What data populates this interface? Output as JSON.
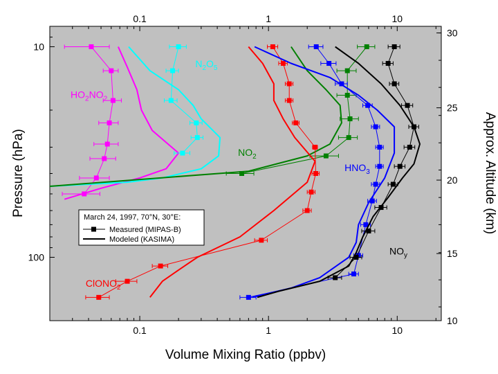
{
  "chart_data": {
    "type": "line",
    "xlabel": "Volume Mixing Ratio (ppbv)",
    "ylabel": "Pressure (hPa)",
    "y2label": "Approx. Altitude (km)",
    "xscale": "log",
    "yscale": "log",
    "xlim": [
      0.02,
      22
    ],
    "ylim": [
      200,
      8
    ],
    "x_ticks": [
      {
        "v": 0.1,
        "label": "0.1"
      },
      {
        "v": 1,
        "label": "1"
      },
      {
        "v": 10,
        "label": "10"
      }
    ],
    "y_ticks": [
      {
        "v": 10,
        "label": "10"
      },
      {
        "v": 100,
        "label": "100"
      }
    ],
    "y2_ticks": [
      {
        "p": 8.6,
        "label": "30"
      },
      {
        "p": 11.6,
        "label": "28"
      },
      {
        "p": 15.6,
        "label": "26"
      },
      {
        "p": 21.2,
        "label": "24"
      },
      {
        "p": 28.6,
        "label": "22"
      },
      {
        "p": 38.5,
        "label": "20"
      },
      {
        "p": 52,
        "label": "18"
      },
      {
        "p": 70,
        "label": "16"
      },
      {
        "p": 95,
        "label": "14"
      },
      {
        "p": 128,
        "label": "12"
      },
      {
        "p": 172,
        "label": "10"
      }
    ],
    "y2_title_ticks": [
      {
        "p": 8.6,
        "label": "30"
      },
      {
        "p": 19.5,
        "label": "25"
      },
      {
        "p": 43,
        "label": "20"
      },
      {
        "p": 96,
        "label": "15"
      },
      {
        "p": 200,
        "label": "10"
      }
    ],
    "grid": false,
    "legend": {
      "position": "center-left",
      "title": "March 24, 1997, 70°N, 30°E:",
      "entries": [
        "Measured (MIPAS-B)",
        "Modeled (KASIMA)"
      ]
    },
    "series": [
      {
        "name": "HO₂NO₂",
        "color": "#ff00ff",
        "measured": {
          "x": [
            0.042,
            0.06,
            0.062,
            0.058,
            0.056,
            0.053,
            0.046,
            0.037
          ],
          "p": [
            10,
            13,
            18,
            23,
            29,
            34,
            42,
            50
          ],
          "xerr": [
            0.016,
            0.008,
            0.01,
            0.01,
            0.012,
            0.012,
            0.012,
            0.012
          ]
        },
        "modeled": {
          "x": [
            0.068,
            0.08,
            0.095,
            0.103,
            0.125,
            0.2,
            0.16,
            0.1,
            0.05,
            0.026
          ],
          "p": [
            10,
            12.5,
            16,
            20,
            25,
            32,
            38,
            42,
            47,
            53
          ]
        }
      },
      {
        "name": "N₂O₅",
        "color": "#00ffff",
        "measured": {
          "x": [
            0.2,
            0.18,
            0.175,
            0.275,
            0.28,
            0.215
          ],
          "p": [
            10,
            13,
            18,
            23,
            27,
            32
          ],
          "xerr": [
            0.03,
            0.02,
            0.02,
            0.03,
            0.03,
            0.03
          ]
        },
        "modeled": {
          "x": [
            0.082,
            0.12,
            0.2,
            0.26,
            0.3,
            0.42,
            0.41,
            0.3,
            0.15,
            0.08,
            0.02
          ],
          "p": [
            10,
            13,
            16,
            19,
            22,
            27,
            33,
            38,
            42,
            44,
            46
          ]
        }
      },
      {
        "name": "NO₂",
        "color": "#008000",
        "measured": {
          "x": [
            5.8,
            4.1,
            4.1,
            4.3,
            4.2,
            2.8,
            0.62
          ],
          "p": [
            10,
            13,
            17,
            22,
            27,
            33,
            40
          ],
          "xerr": [
            0.9,
            0.7,
            0.7,
            0.7,
            0.7,
            0.7,
            0.15
          ]
        },
        "modeled": {
          "x": [
            1.5,
            2.0,
            2.8,
            3.6,
            3.7,
            3.0,
            2.0,
            0.7,
            0.02
          ],
          "p": [
            10,
            13,
            16,
            19,
            23,
            29,
            33,
            39,
            46
          ]
        }
      },
      {
        "name": "ClONO₂",
        "color": "#ff0000",
        "measured": {
          "x": [
            1.08,
            1.3,
            1.45,
            1.45,
            1.63,
            2.3,
            2.33,
            2.15,
            2.0,
            0.88,
            0.145,
            0.08,
            0.048
          ],
          "p": [
            10,
            12,
            15,
            18,
            23,
            30,
            40,
            49,
            60,
            83,
            110,
            130,
            155
          ],
          "xerr": [
            0.1,
            0.1,
            0.1,
            0.1,
            0.1,
            0.1,
            0.15,
            0.15,
            0.15,
            0.1,
            0.02,
            0.015,
            0.01
          ]
        },
        "modeled": {
          "x": [
            0.7,
            0.9,
            1.1,
            1.1,
            1.3,
            1.6,
            2.3,
            2.0,
            1.1,
            0.6,
            0.28,
            0.2,
            0.15,
            0.12
          ],
          "p": [
            10,
            12,
            15,
            18,
            22,
            27,
            35,
            44,
            60,
            80,
            100,
            115,
            130,
            155
          ]
        }
      },
      {
        "name": "HNO₃",
        "color": "#0000ff",
        "measured": {
          "x": [
            2.35,
            2.95,
            3.7,
            5.9,
            6.8,
            7.3,
            7.3,
            6.8,
            6.4,
            5.7,
            5.0,
            4.6,
            0.7
          ],
          "p": [
            10,
            12,
            15,
            19,
            24,
            30,
            37,
            45,
            54,
            70,
            98,
            120,
            155
          ],
          "xerr": [
            0.3,
            0.4,
            0.4,
            0.5,
            0.5,
            0.5,
            0.5,
            0.5,
            0.5,
            0.5,
            0.4,
            0.4,
            0.1
          ]
        },
        "modeled": {
          "x": [
            0.78,
            1.5,
            3.0,
            5.0,
            7.0,
            9.5,
            9.5,
            8.0,
            6.0,
            5.0,
            4.8,
            4.2,
            2.5,
            1.5,
            0.75
          ],
          "p": [
            10,
            12,
            14,
            17,
            20,
            24,
            32,
            42,
            55,
            70,
            85,
            100,
            125,
            140,
            155
          ]
        }
      },
      {
        "name": "NOy",
        "color": "#000000",
        "measured": {
          "x": [
            9.5,
            8.5,
            9.5,
            12.0,
            13.5,
            12.5,
            10.5,
            9.3,
            7.5,
            6.0,
            4.8,
            3.3
          ],
          "p": [
            10,
            12,
            15,
            19,
            24,
            30,
            37,
            45,
            58,
            75,
            100,
            125
          ],
          "xerr": [
            1.0,
            0.8,
            0.8,
            1.2,
            1.2,
            1.2,
            1.0,
            0.8,
            0.8,
            0.7,
            0.5,
            0.4
          ]
        },
        "modeled": {
          "x": [
            3.3,
            5.0,
            7.5,
            10.5,
            13.5,
            15.0,
            13.5,
            11.0,
            8.5,
            6.5,
            5.4,
            4.8,
            4.2,
            2.5,
            1.2,
            0.82
          ],
          "p": [
            10,
            12,
            15,
            19,
            24,
            29,
            36,
            42,
            52,
            64,
            80,
            95,
            110,
            130,
            145,
            155
          ]
        }
      }
    ],
    "annotations": [
      {
        "series": "HO₂NO₂",
        "base": "HO",
        "subs": [
          [
            "2",
            "NO"
          ],
          [
            "2",
            ""
          ]
        ],
        "color": "#ff00ff",
        "x": 0.029,
        "p": 17.5
      },
      {
        "series": "N₂O₅",
        "base": "N",
        "subs": [
          [
            "2",
            "O"
          ],
          [
            "5",
            ""
          ]
        ],
        "color": "#00ffff",
        "x": 0.27,
        "p": 12.5
      },
      {
        "series": "NO₂",
        "base": "NO",
        "subs": [
          [
            "2",
            ""
          ]
        ],
        "color": "#008000",
        "x": 0.58,
        "p": 33
      },
      {
        "series": "ClONO₂",
        "base": "ClONO",
        "subs": [
          [
            "2",
            ""
          ]
        ],
        "color": "#ff0000",
        "x": 0.038,
        "p": 138
      },
      {
        "series": "HNO₃",
        "base": "HNO",
        "subs": [
          [
            "3",
            ""
          ]
        ],
        "color": "#0000ff",
        "x": 3.9,
        "p": 39
      },
      {
        "series": "NOy",
        "base": "NO",
        "subs": [
          [
            "y",
            ""
          ]
        ],
        "color": "#000000",
        "x": 8.7,
        "p": 97
      }
    ]
  }
}
